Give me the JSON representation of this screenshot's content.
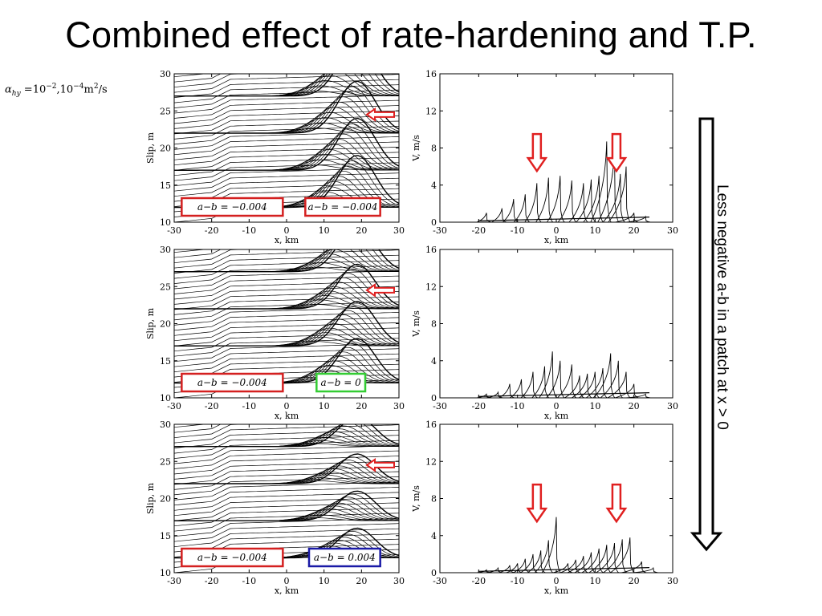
{
  "slide": {
    "title": "Combined effect of rate-hardening and T.P.",
    "param_symbol": "α",
    "param_subscript": "hy",
    "param_eq": " =10",
    "param_exp1": "−2",
    "param_mid": ",10",
    "param_exp2": "−4",
    "param_unit": "m",
    "param_unit_exp": "2",
    "param_unit_tail": "/s",
    "side_note": "Less negative a-b in a patch at x > 0"
  },
  "colors": {
    "arrow_red": "#e02020",
    "box_red": "#d42020",
    "box_green": "#33cc33",
    "box_blue": "#1a1aa6",
    "curve": "#000000"
  },
  "chart_data": [
    {
      "type": "line",
      "panel": "slip-top",
      "xlabel": "x, km",
      "ylabel": "Slip, m",
      "xlim": [
        -30,
        30
      ],
      "ylim": [
        10,
        30
      ],
      "xticks": [
        "-30",
        "-20",
        "-10",
        "0",
        "10",
        "20",
        "30"
      ],
      "yticks": [
        "10",
        "15",
        "20",
        "25",
        "30"
      ],
      "boxes": [
        {
          "text": "a−b = −0.004",
          "color": "red"
        },
        {
          "text": "a−b = −0.004",
          "color": "red"
        }
      ],
      "has_hollow_arrow": true
    },
    {
      "type": "line",
      "panel": "velocity-top",
      "xlabel": "x, km",
      "ylabel": "V, m/s",
      "xlim": [
        -30,
        30
      ],
      "ylim": [
        0,
        16
      ],
      "xticks": [
        "-30",
        "-20",
        "-10",
        "0",
        "10",
        "20",
        "30"
      ],
      "yticks": [
        "0",
        "4",
        "8",
        "12",
        "16"
      ],
      "peaks": [
        {
          "x": -18,
          "v": 1.0
        },
        {
          "x": -14,
          "v": 1.5
        },
        {
          "x": -11,
          "v": 2.5
        },
        {
          "x": -8,
          "v": 3.0
        },
        {
          "x": -5,
          "v": 4.2
        },
        {
          "x": -2,
          "v": 4.8
        },
        {
          "x": 1,
          "v": 5.0
        },
        {
          "x": 4,
          "v": 4.5
        },
        {
          "x": 7,
          "v": 4.2
        },
        {
          "x": 9,
          "v": 4.6
        },
        {
          "x": 11,
          "v": 5.0
        },
        {
          "x": 13,
          "v": 8.7
        },
        {
          "x": 15,
          "v": 8.0
        },
        {
          "x": 16.5,
          "v": 5.2
        },
        {
          "x": 18,
          "v": 6.0
        },
        {
          "x": 20,
          "v": 1.0
        },
        {
          "x": 23,
          "v": 0.6
        }
      ],
      "red_arrows_at_x": [
        -5,
        15.5
      ]
    },
    {
      "type": "line",
      "panel": "slip-middle",
      "xlabel": "x, km",
      "ylabel": "Slip, m",
      "xlim": [
        -30,
        30
      ],
      "ylim": [
        10,
        30
      ],
      "xticks": [
        "-30",
        "-20",
        "-10",
        "0",
        "10",
        "20",
        "30"
      ],
      "yticks": [
        "10",
        "15",
        "20",
        "25",
        "30"
      ],
      "boxes": [
        {
          "text": "a−b = −0.004",
          "color": "red"
        },
        {
          "text": "a−b = 0",
          "color": "green"
        }
      ],
      "has_hollow_arrow": true
    },
    {
      "type": "line",
      "panel": "velocity-middle",
      "xlabel": "x, km",
      "ylabel": "V, m/s",
      "xlim": [
        -30,
        30
      ],
      "ylim": [
        0,
        16
      ],
      "xticks": [
        "-30",
        "-20",
        "-10",
        "0",
        "10",
        "20",
        "30"
      ],
      "yticks": [
        "0",
        "4",
        "8",
        "12",
        "16"
      ],
      "peaks": [
        {
          "x": -18,
          "v": 0.4
        },
        {
          "x": -15,
          "v": 0.6
        },
        {
          "x": -12,
          "v": 1.5
        },
        {
          "x": -9,
          "v": 2.0
        },
        {
          "x": -6,
          "v": 2.8
        },
        {
          "x": -3,
          "v": 3.4
        },
        {
          "x": -1,
          "v": 5.0
        },
        {
          "x": 1,
          "v": 4.0
        },
        {
          "x": 4,
          "v": 3.6
        },
        {
          "x": 6,
          "v": 2.4
        },
        {
          "x": 8,
          "v": 2.6
        },
        {
          "x": 10,
          "v": 2.8
        },
        {
          "x": 12,
          "v": 3.2
        },
        {
          "x": 14,
          "v": 4.8
        },
        {
          "x": 16,
          "v": 4.0
        },
        {
          "x": 18,
          "v": 2.8
        },
        {
          "x": 20,
          "v": 1.5
        },
        {
          "x": 23,
          "v": 0.4
        }
      ],
      "red_arrows_at_x": []
    },
    {
      "type": "line",
      "panel": "slip-bottom",
      "xlabel": "x, km",
      "ylabel": "Slip, m",
      "xlim": [
        -30,
        30
      ],
      "ylim": [
        10,
        30
      ],
      "xticks": [
        "-30",
        "-20",
        "-10",
        "0",
        "10",
        "20",
        "30"
      ],
      "yticks": [
        "10",
        "15",
        "20",
        "25",
        "30"
      ],
      "boxes": [
        {
          "text": "a−b = −0.004",
          "color": "red"
        },
        {
          "text": "a−b = 0.004",
          "color": "blue"
        }
      ],
      "has_hollow_arrow": true
    },
    {
      "type": "line",
      "panel": "velocity-bottom",
      "xlabel": "x, km",
      "ylabel": "V, m/s",
      "xlim": [
        -30,
        30
      ],
      "ylim": [
        0,
        16
      ],
      "xticks": [
        "-30",
        "-20",
        "-10",
        "0",
        "10",
        "20",
        "30"
      ],
      "yticks": [
        "0",
        "4",
        "8",
        "12",
        "16"
      ],
      "peaks": [
        {
          "x": -18,
          "v": 0.3
        },
        {
          "x": -15,
          "v": 0.5
        },
        {
          "x": -12,
          "v": 0.8
        },
        {
          "x": -10,
          "v": 1.0
        },
        {
          "x": -8,
          "v": 1.5
        },
        {
          "x": -6,
          "v": 2.0
        },
        {
          "x": -4,
          "v": 2.4
        },
        {
          "x": -2,
          "v": 3.5
        },
        {
          "x": 0,
          "v": 6.0
        },
        {
          "x": 3,
          "v": 1.0
        },
        {
          "x": 5,
          "v": 1.4
        },
        {
          "x": 7,
          "v": 1.8
        },
        {
          "x": 9,
          "v": 2.2
        },
        {
          "x": 11,
          "v": 2.6
        },
        {
          "x": 13,
          "v": 3.0
        },
        {
          "x": 15,
          "v": 3.2
        },
        {
          "x": 17,
          "v": 3.6
        },
        {
          "x": 19,
          "v": 3.8
        },
        {
          "x": 22,
          "v": 1.2
        },
        {
          "x": 25,
          "v": 0.5
        }
      ],
      "red_arrows_at_x": [
        -5,
        15.5
      ]
    }
  ]
}
